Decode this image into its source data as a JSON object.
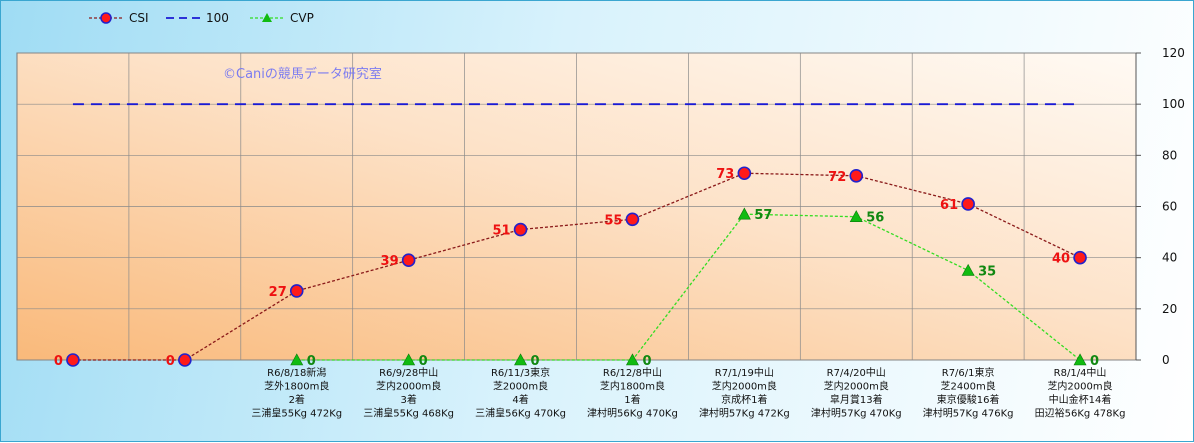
{
  "legend": [
    {
      "name": "CSI",
      "color": "#8b1a1a",
      "marker": "circle"
    },
    {
      "name": "100",
      "color": "#1a1ad4",
      "marker": "none"
    },
    {
      "name": "CVP",
      "color": "#33dd22",
      "marker": "triangle"
    }
  ],
  "watermark": "©Caniの競馬データ研究室",
  "chart_data": {
    "type": "line",
    "ylim": [
      0,
      120
    ],
    "yticks": [
      0,
      20,
      40,
      60,
      80,
      100,
      120
    ],
    "y_axis_side": "right",
    "grid": true,
    "legend_position": "top-left",
    "categories": [
      [],
      [],
      [
        "R6/8/18新潟",
        "芝外1800m良",
        "2着",
        "三浦皇55Kg 472Kg"
      ],
      [
        "R6/9/28中山",
        "芝内2000m良",
        "3着",
        "三浦皇55Kg 468Kg"
      ],
      [
        "R6/11/3東京",
        "芝2000m良",
        "4着",
        "三浦皇56Kg 470Kg"
      ],
      [
        "R6/12/8中山",
        "芝内1800m良",
        "1着",
        "津村明56Kg 470Kg"
      ],
      [
        "R7/1/19中山",
        "芝内2000m良",
        "京成杯1着",
        "津村明57Kg 472Kg"
      ],
      [
        "R7/4/20中山",
        "芝内2000m良",
        "皐月賞13着",
        "津村明57Kg 470Kg"
      ],
      [
        "R7/6/1東京",
        "芝2400m良",
        "東京優駿16着",
        "津村明57Kg 476Kg"
      ],
      [
        "R8/1/4中山",
        "芝内2000m良",
        "中山金杯14着",
        "田辺裕56Kg 478Kg"
      ]
    ],
    "series": [
      {
        "name": "CSI",
        "values": [
          0,
          0,
          27,
          39,
          51,
          55,
          73,
          72,
          61,
          40
        ],
        "line_color": "#8b1a1a",
        "marker_fill": "#ff1a1a",
        "marker_stroke": "#2222cc",
        "label_color": "#ee1111",
        "label_side": "left"
      },
      {
        "name": "100",
        "values": [
          100,
          100,
          100,
          100,
          100,
          100,
          100,
          100,
          100,
          100
        ],
        "line_color": "#1a1ad4",
        "dash": "long"
      },
      {
        "name": "CVP",
        "values": [
          null,
          null,
          0,
          0,
          0,
          0,
          57,
          56,
          35,
          0
        ],
        "line_color": "#33dd22",
        "marker_fill": "#11bb11",
        "label_color": "#118811",
        "label_side": "right"
      }
    ]
  }
}
